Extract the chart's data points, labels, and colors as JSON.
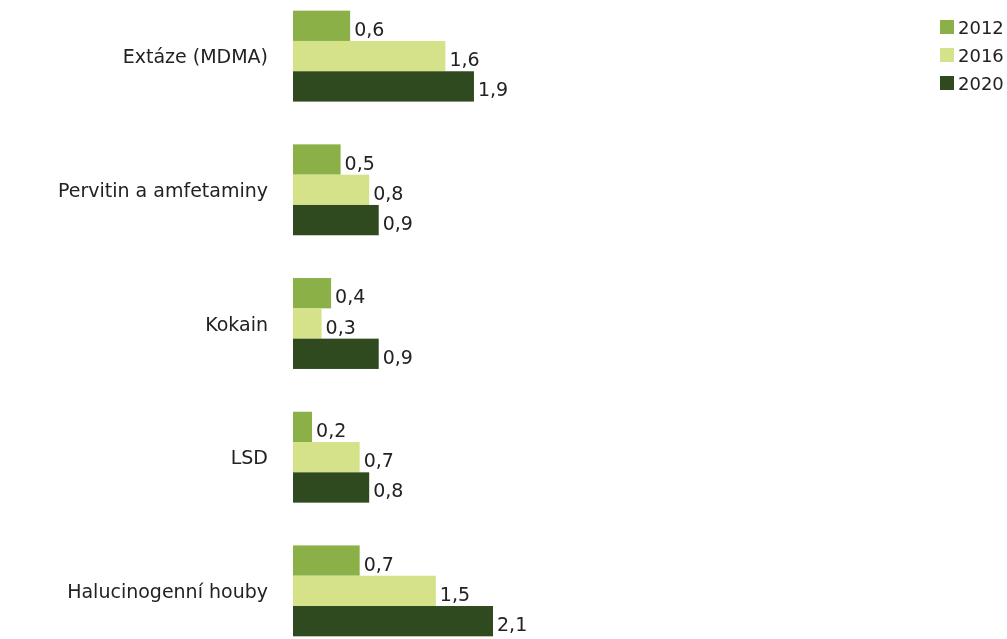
{
  "chart_data": {
    "type": "bar",
    "orientation": "horizontal",
    "categories": [
      "Extáze (MDMA)",
      "Pervitin a amfetaminy",
      "Kokain",
      "LSD",
      "Halucinogenní houby"
    ],
    "legend": "top right",
    "series": [
      {
        "name": "2012",
        "color": "#8cb048",
        "values": [
          0.6,
          0.5,
          0.4,
          0.2,
          0.7
        ],
        "value_labels": [
          "0,6",
          "0,5",
          "0,4",
          "0,2",
          "0,7"
        ]
      },
      {
        "name": "2016",
        "color": "#d5e28a",
        "values": [
          1.6,
          0.8,
          0.3,
          0.7,
          1.5
        ],
        "value_labels": [
          "1,6",
          "0,8",
          "0,3",
          "0,7",
          "1,5"
        ]
      },
      {
        "name": "2020",
        "color": "#2e4a1e",
        "values": [
          1.9,
          0.9,
          0.9,
          0.8,
          2.1
        ],
        "value_labels": [
          "1,9",
          "0,9",
          "0,9",
          "0,8",
          "2,1"
        ]
      }
    ]
  }
}
